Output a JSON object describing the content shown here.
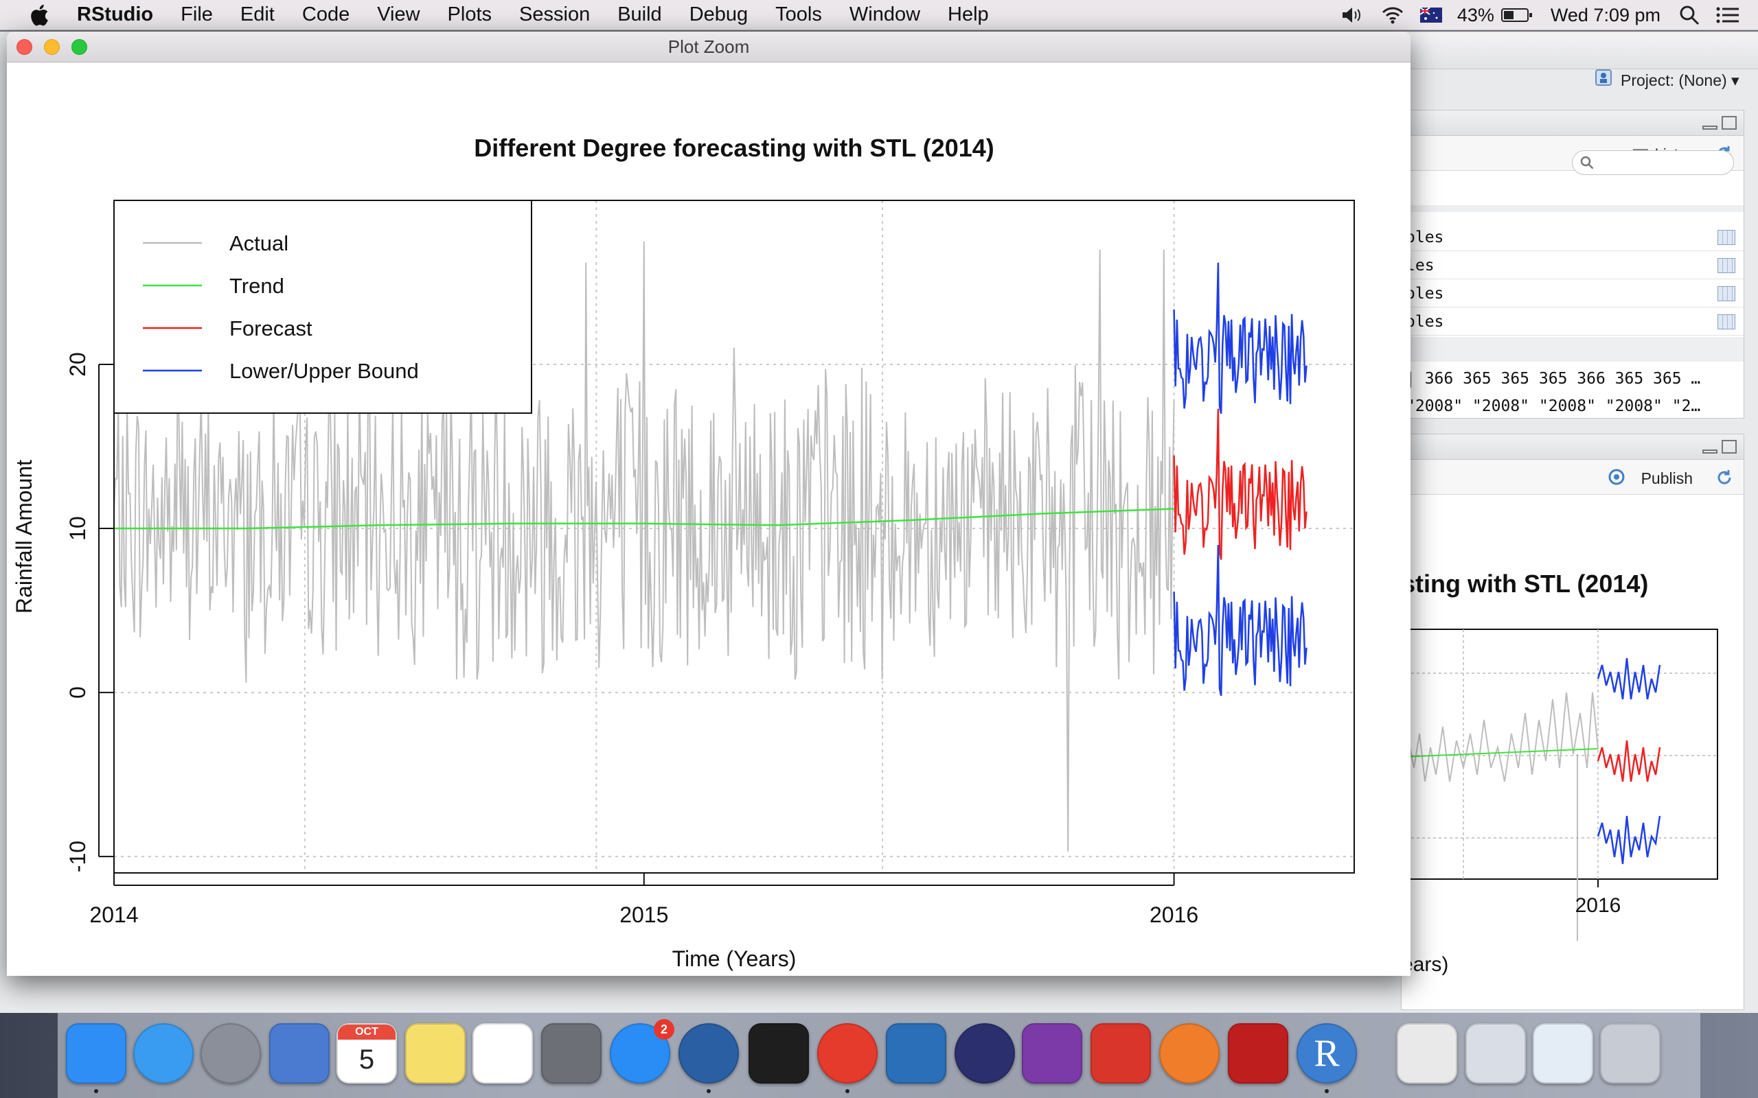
{
  "menubar": {
    "app_name": "RStudio",
    "items": [
      "File",
      "Edit",
      "Code",
      "View",
      "Plots",
      "Session",
      "Build",
      "Debug",
      "Tools",
      "Window",
      "Help"
    ],
    "battery": "43%",
    "clock": "Wed 7:09 pm"
  },
  "background_rstudio": {
    "project_label": "Project: (None)",
    "environment": {
      "list_button": "List",
      "rows": [
        "oles",
        "les",
        "oles",
        "oles"
      ],
      "values_line_1": "366 365 365 365 366 365 365 …",
      "values_line_2": "\"2008\" \"2008\" \"2008\" \"2008\" \"2…"
    },
    "viewer": {
      "publish_button": "Publish",
      "plot_title_fragment": "sting with STL (2014)",
      "x_tick_label": "2016",
      "x_label_fragment": "ears)"
    }
  },
  "zoom_window": {
    "title": "Plot Zoom"
  },
  "chart_data": {
    "type": "line",
    "title": "Different Degree forecasting with STL (2014)",
    "xlabel": "Time (Years)",
    "ylabel": "Rainfall Amount",
    "xlim": [
      2014,
      2016.34
    ],
    "ylim": [
      -11,
      30
    ],
    "x_ticks": [
      2014,
      2015,
      2016
    ],
    "x_tick_labels": [
      "2014",
      "2015",
      "2016"
    ],
    "y_ticks": [
      -10,
      0,
      10,
      20
    ],
    "y_tick_labels": [
      "-10",
      "0",
      "10",
      "20"
    ],
    "grid": true,
    "legend_position": "top-left",
    "legend": [
      {
        "label": "Actual",
        "color": "#bdbdbd"
      },
      {
        "label": "Trend",
        "color": "#3ee33e"
      },
      {
        "label": "Forecast",
        "color": "#ee2222"
      },
      {
        "label": "Lower/Upper Bound",
        "color": "#1f3fe6"
      }
    ],
    "series": [
      {
        "name": "Actual",
        "color": "#bdbdbd",
        "x_start": 2014.0,
        "x_end": 2016.0,
        "summary": {
          "mean": 10.5,
          "min": -9.7,
          "max": 27.5
        },
        "notable_points": [
          [
            2014.12,
            21.9
          ],
          [
            2014.89,
            26.2
          ],
          [
            2015.0,
            27.5
          ],
          [
            2015.86,
            27.0
          ],
          [
            2015.98,
            27.0
          ],
          [
            2015.8,
            -9.7
          ],
          [
            2014.25,
            0.6
          ],
          [
            2014.66,
            0.9
          ],
          [
            2015.45,
            0.8
          ]
        ]
      },
      {
        "name": "Trend",
        "color": "#3ee33e",
        "x": [
          2014.0,
          2014.25,
          2014.5,
          2014.75,
          2015.0,
          2015.25,
          2015.5,
          2015.75,
          2016.0
        ],
        "y": [
          10.0,
          10.0,
          10.2,
          10.3,
          10.3,
          10.2,
          10.5,
          10.9,
          11.2
        ]
      },
      {
        "name": "Forecast",
        "color": "#ee2222",
        "x_start": 2016.0,
        "x_end": 2016.25,
        "summary": {
          "mean": 11.6,
          "min": 7.9,
          "max": 17.3
        }
      },
      {
        "name": "Lower Bound",
        "color": "#1f3fe6",
        "x_start": 2016.0,
        "x_end": 2016.25,
        "summary": {
          "mean": 3.3,
          "min": -0.9,
          "max": 7.8
        }
      },
      {
        "name": "Upper Bound",
        "color": "#1f3fe6",
        "x_start": 2016.0,
        "x_end": 2016.25,
        "summary": {
          "mean": 20.5,
          "min": 16.8,
          "max": 26.3
        }
      }
    ]
  },
  "dock": {
    "apps": [
      "finder-icon",
      "safari-icon",
      "launchpad-icon",
      "mail-icon",
      "calendar-icon",
      "notes-icon",
      "reminders-icon",
      "system-preferences-icon",
      "app-store-icon",
      "sourcetree-icon",
      "terminal-icon",
      "chrome-icon",
      "scrivener-icon",
      "eclipse-icon",
      "onenote-icon",
      "xmind-icon",
      "pencil-icon",
      "filezilla-icon",
      "r-icon",
      "preview-doc-icon",
      "screenshot-doc-icon",
      "report-doc-icon",
      "trash-icon"
    ],
    "calendar_month": "OCT",
    "calendar_day": "5",
    "app_store_badge": "2",
    "accent_colors": {
      "finder": "#2f8ef5",
      "chrome_red": "#e43b2c",
      "filezilla": "#bf1e1e"
    }
  }
}
